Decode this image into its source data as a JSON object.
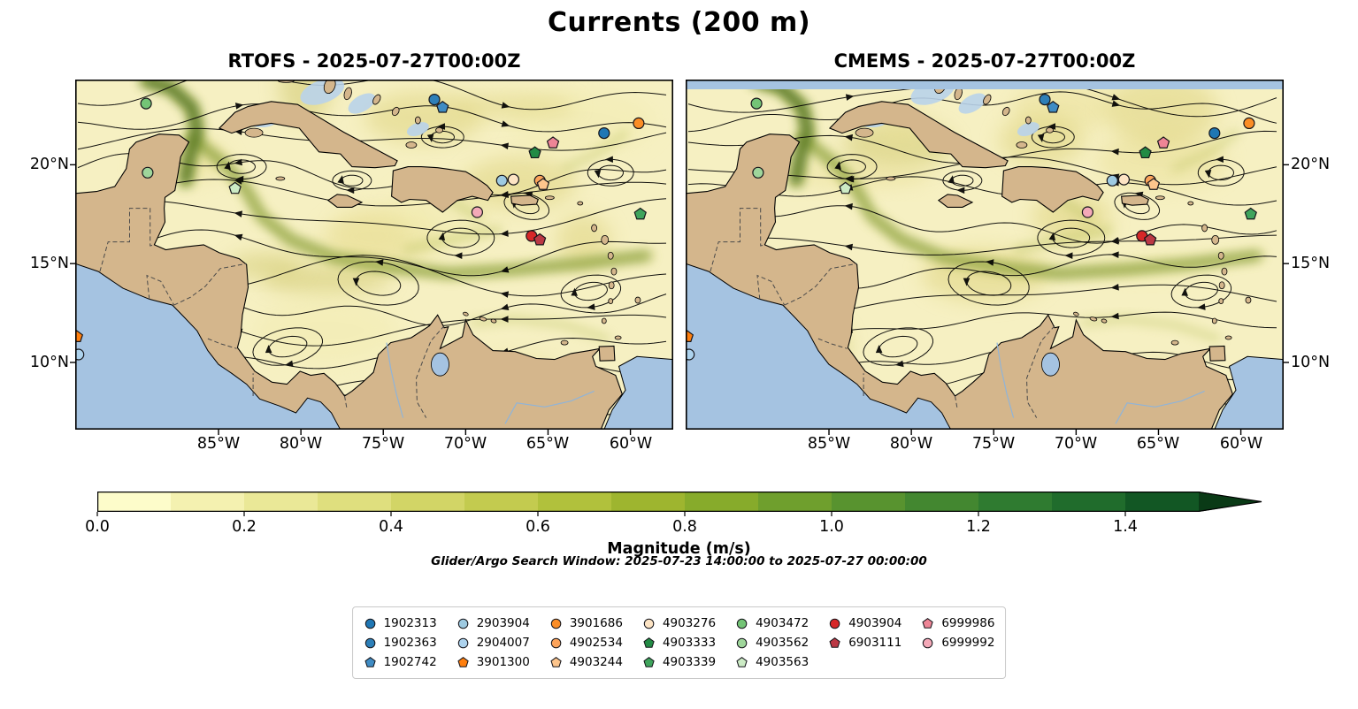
{
  "figure": {
    "title": "Currents (200 m)"
  },
  "panels": [
    {
      "model": "RTOFS",
      "title": "RTOFS - 2025-07-27T00:00Z"
    },
    {
      "model": "CMEMS",
      "title": "CMEMS - 2025-07-27T00:00Z"
    }
  ],
  "axes": {
    "x_ticks": [
      "85°W",
      "80°W",
      "75°W",
      "70°W",
      "65°W",
      "60°W"
    ],
    "x_tick_lons": [
      -85,
      -80,
      -75,
      -70,
      -65,
      -60
    ],
    "y_ticks": [
      "20°N",
      "15°N",
      "10°N"
    ],
    "y_tick_lats": [
      20,
      15,
      10
    ]
  },
  "colorbar": {
    "label": "Magnitude (m/s)",
    "ticks": [
      "0.0",
      "0.2",
      "0.4",
      "0.6",
      "0.8",
      "1.0",
      "1.2",
      "1.4"
    ],
    "tick_values": [
      0,
      0.2,
      0.4,
      0.6,
      0.8,
      1.0,
      1.2,
      1.4
    ],
    "scale_max": 1.5,
    "colors": [
      "#fdfcca",
      "#f4f1b0",
      "#eae897",
      "#dfdf7e",
      "#d2d566",
      "#c3cb4f",
      "#b1c13c",
      "#9eb52f",
      "#87ab2b",
      "#6f9f2d",
      "#58932f",
      "#438730",
      "#2f7b30",
      "#206c2c",
      "#125724"
    ],
    "extend_color": "#0a3a16"
  },
  "annotation": {
    "search_window": "Glider/Argo Search Window: 2025-07-23 14:00:00 to 2025-07-27 00:00:00"
  },
  "legend": {
    "columns": [
      [
        "1902313",
        "1902363",
        "1902742"
      ],
      [
        "2903904",
        "2904007",
        "3901300"
      ],
      [
        "3901686",
        "4902534",
        "4903244"
      ],
      [
        "4903276",
        "4903333",
        "4903339"
      ],
      [
        "4903472",
        "4903562",
        "4903563"
      ],
      [
        "4903904",
        "6903111"
      ],
      [
        "6999986",
        "6999992"
      ]
    ]
  },
  "chart_data": {
    "type": "map-streamplot",
    "title": "Currents (200 m)",
    "panels": [
      {
        "model": "RTOFS",
        "valid_time": "2025-07-27T00:00Z"
      },
      {
        "model": "CMEMS",
        "valid_time": "2025-07-27T00:00Z"
      }
    ],
    "region": {
      "lon_min": -93.7,
      "lon_max": -57.4,
      "lat_min": 6.6,
      "lat_max": 24.31
    },
    "color_variable": {
      "name": "Magnitude",
      "units": "m/s",
      "min": 0.0,
      "max": 1.5,
      "extend": "max"
    },
    "streamlines": true,
    "markers": [
      {
        "id": "1902313",
        "shape": "circle",
        "color": "#1f77b4",
        "lon": -61.6,
        "lat": 21.6
      },
      {
        "id": "1902363",
        "shape": "circle",
        "color": "#2d7fb8",
        "lon": -71.9,
        "lat": 23.3
      },
      {
        "id": "1902742",
        "shape": "pentagon",
        "color": "#3f8cc4",
        "lon": -71.4,
        "lat": 22.9
      },
      {
        "id": "2903904",
        "shape": "circle",
        "color": "#9ecae1",
        "lon": -67.8,
        "lat": 19.2
      },
      {
        "id": "2904007",
        "shape": "circle",
        "color": "#add3ee",
        "lon": -93.5,
        "lat": 10.4
      },
      {
        "id": "3901300",
        "shape": "pentagon",
        "color": "#ff7f0e",
        "lon": -93.6,
        "lat": 11.3
      },
      {
        "id": "3901686",
        "shape": "circle",
        "color": "#fb8d26",
        "lon": -59.5,
        "lat": 22.1
      },
      {
        "id": "4902534",
        "shape": "circle",
        "color": "#fca35a",
        "lon": -65.5,
        "lat": 19.2
      },
      {
        "id": "4903244",
        "shape": "pentagon",
        "color": "#fdc58c",
        "lon": -65.3,
        "lat": 19.0
      },
      {
        "id": "4903276",
        "shape": "circle",
        "color": "#fde4c4",
        "lon": -67.1,
        "lat": 19.25
      },
      {
        "id": "4903333",
        "shape": "pentagon",
        "color": "#238b45",
        "lon": -65.8,
        "lat": 20.6
      },
      {
        "id": "4903339",
        "shape": "pentagon",
        "color": "#3fa45c",
        "lon": -59.4,
        "lat": 17.5
      },
      {
        "id": "4903472",
        "shape": "circle",
        "color": "#74c476",
        "lon": -89.4,
        "lat": 23.1
      },
      {
        "id": "4903562",
        "shape": "circle",
        "color": "#9fd69b",
        "lon": -89.3,
        "lat": 19.6
      },
      {
        "id": "4903563",
        "shape": "pentagon",
        "color": "#ccebc5",
        "lon": -84.0,
        "lat": 18.8
      },
      {
        "id": "4903904",
        "shape": "circle",
        "color": "#d62728",
        "lon": -66.0,
        "lat": 16.4
      },
      {
        "id": "6903111",
        "shape": "pentagon",
        "color": "#bb3844",
        "lon": -65.5,
        "lat": 16.2
      },
      {
        "id": "6999986",
        "shape": "pentagon",
        "color": "#ee8596",
        "lon": -64.7,
        "lat": 21.1
      },
      {
        "id": "6999992",
        "shape": "circle",
        "color": "#f4a9b8",
        "lon": -69.3,
        "lat": 17.6
      }
    ]
  }
}
